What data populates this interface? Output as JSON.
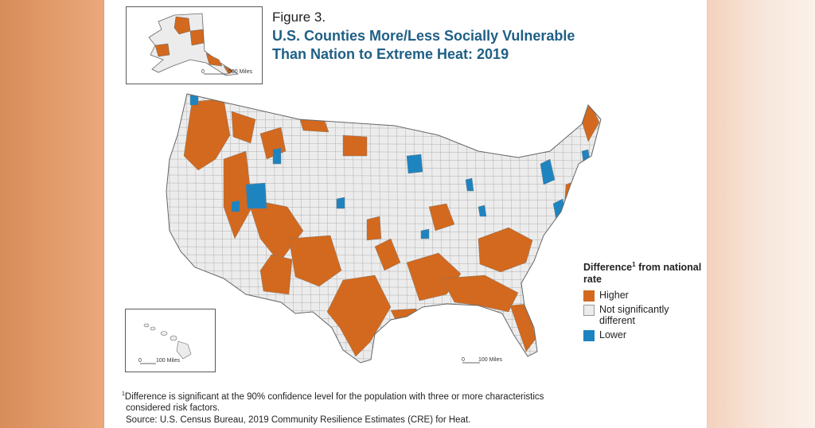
{
  "figure": {
    "label": "Figure 3.",
    "title": "U.S. Counties More/Less Socially Vulnerable Than Nation to Extreme Heat: 2019"
  },
  "colors": {
    "higher": "#d2691e",
    "not_significant": "#ececec",
    "lower": "#1e84c0",
    "border": "#777777",
    "title": "#1f5f86"
  },
  "legend": {
    "title_prefix": "Difference",
    "title_superscript": "1",
    "title_suffix": " from national rate",
    "items": [
      {
        "label": "Higher",
        "color_key": "higher"
      },
      {
        "label": "Not significantly different",
        "color_key": "not_significant"
      },
      {
        "label": "Lower",
        "color_key": "lower"
      }
    ]
  },
  "scales": {
    "alaska": "500 Miles",
    "hawaii": "100 Miles",
    "contiguous": "100 Miles",
    "zero": "0"
  },
  "notes": {
    "footnote_mark": "1",
    "footnote_line1": "Difference is significant at the 90% confidence level for the population with three or more characteristics",
    "footnote_line2": "considered risk factors.",
    "source": "Source: U.S. Census Bureau, 2019 Community Resilience Estimates (CRE) for Heat."
  }
}
